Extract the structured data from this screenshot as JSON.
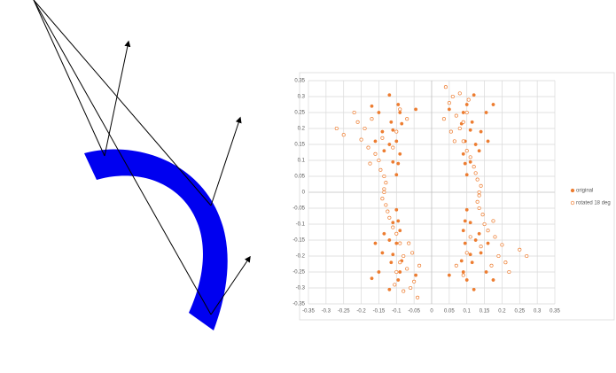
{
  "chart_data": {
    "type": "scatter",
    "xlim": [
      -0.35,
      0.35
    ],
    "ylim": [
      -0.35,
      0.35
    ],
    "xticks": [
      -0.35,
      -0.3,
      -0.25,
      -0.2,
      -0.15,
      -0.1,
      -0.05,
      0,
      0.05,
      0.1,
      0.15,
      0.2,
      0.25,
      0.3,
      0.35
    ],
    "yticks": [
      -0.35,
      -0.3,
      -0.25,
      -0.2,
      -0.15,
      -0.1,
      -0.05,
      0,
      0.05,
      0.1,
      0.15,
      0.2,
      0.25,
      0.3,
      0.35
    ],
    "grid": true,
    "legend": "right",
    "series": [
      {
        "name": "original",
        "color": "#ed7d31",
        "filled": true,
        "x": [
          -0.12,
          -0.17,
          -0.095,
          -0.045,
          -0.15,
          -0.09,
          -0.115,
          -0.085,
          -0.14,
          -0.11,
          -0.16,
          -0.12,
          -0.1,
          -0.135,
          -0.09,
          -0.11,
          -0.095,
          -0.1,
          0.12,
          0.175,
          0.1,
          0.05,
          0.155,
          0.09,
          0.115,
          0.085,
          0.14,
          0.11,
          0.16,
          0.125,
          0.095,
          0.135,
          0.09,
          0.11,
          0.095,
          0.1,
          -0.12,
          -0.17,
          -0.095,
          -0.045,
          -0.15,
          -0.09,
          -0.115,
          -0.085,
          -0.14,
          -0.11,
          -0.16,
          -0.12,
          -0.1,
          -0.135,
          -0.09,
          -0.11,
          -0.095,
          -0.1,
          0.12,
          0.175,
          0.1,
          0.05,
          0.155,
          0.09,
          0.115,
          0.085,
          0.14,
          0.11,
          0.16,
          0.125,
          0.095,
          0.135,
          0.09,
          0.11,
          0.095,
          0.1
        ],
        "values": [
          0.305,
          0.27,
          0.275,
          0.26,
          0.25,
          0.25,
          0.22,
          0.215,
          0.19,
          0.195,
          0.16,
          0.15,
          0.16,
          0.13,
          0.12,
          0.095,
          0.09,
          0.055,
          0.305,
          0.275,
          0.275,
          0.26,
          0.25,
          0.25,
          0.22,
          0.215,
          0.19,
          0.195,
          0.16,
          0.15,
          0.16,
          0.13,
          0.12,
          0.095,
          0.09,
          0.055,
          -0.305,
          -0.27,
          -0.275,
          -0.26,
          -0.25,
          -0.25,
          -0.22,
          -0.215,
          -0.19,
          -0.195,
          -0.16,
          -0.15,
          -0.16,
          -0.13,
          -0.12,
          -0.095,
          -0.09,
          -0.055,
          -0.305,
          -0.275,
          -0.275,
          -0.26,
          -0.25,
          -0.25,
          -0.22,
          -0.215,
          -0.19,
          -0.195,
          -0.16,
          -0.15,
          -0.16,
          -0.13,
          -0.12,
          -0.095,
          -0.09,
          -0.055
        ]
      },
      {
        "name": "rotated 18 deg",
        "color": "#ed7d31",
        "filled": false,
        "x": [
          -0.27,
          -0.25,
          -0.22,
          -0.21,
          -0.2,
          -0.19,
          -0.18,
          -0.17,
          -0.16,
          -0.175,
          -0.15,
          -0.14,
          -0.145,
          -0.135,
          -0.13,
          -0.135,
          -0.09,
          -0.07,
          -0.1,
          -0.11,
          0.04,
          0.06,
          0.05,
          0.08,
          0.035,
          0.07,
          0.1,
          0.055,
          0.08,
          0.09,
          0.065,
          0.1,
          0.11,
          0.12,
          0.125,
          0.13,
          0.14,
          0.135,
          0.105,
          0.09,
          0.27,
          0.25,
          0.22,
          0.21,
          0.2,
          0.19,
          0.18,
          0.17,
          0.16,
          0.175,
          0.15,
          0.14,
          0.145,
          0.135,
          0.13,
          0.135,
          0.09,
          0.07,
          0.1,
          0.11,
          -0.04,
          -0.06,
          -0.05,
          -0.08,
          -0.035,
          -0.07,
          -0.1,
          -0.055,
          -0.08,
          -0.09,
          -0.065,
          -0.1,
          -0.11,
          -0.12,
          -0.125,
          -0.13,
          -0.14,
          -0.135,
          -0.105,
          -0.09
        ],
        "values": [
          0.2,
          0.18,
          0.25,
          0.22,
          0.165,
          0.2,
          0.14,
          0.23,
          0.12,
          0.09,
          0.1,
          0.17,
          0.07,
          0.05,
          0.03,
          0.01,
          0.26,
          0.23,
          0.19,
          0.14,
          0.33,
          0.3,
          0.28,
          0.31,
          0.23,
          0.24,
          0.25,
          0.19,
          0.2,
          0.16,
          0.16,
          0.13,
          0.11,
          0.08,
          0.06,
          0.04,
          0.02,
          0,
          0.29,
          0.22,
          -0.2,
          -0.18,
          -0.25,
          -0.22,
          -0.165,
          -0.2,
          -0.14,
          -0.23,
          -0.12,
          -0.09,
          -0.1,
          -0.17,
          -0.07,
          -0.05,
          -0.03,
          -0.01,
          -0.26,
          -0.23,
          -0.19,
          -0.14,
          -0.33,
          -0.3,
          -0.28,
          -0.31,
          -0.23,
          -0.24,
          -0.25,
          -0.19,
          -0.2,
          -0.16,
          -0.16,
          -0.13,
          -0.11,
          -0.08,
          -0.06,
          -0.04,
          -0.02,
          0,
          -0.29,
          -0.22
        ]
      }
    ]
  }
}
